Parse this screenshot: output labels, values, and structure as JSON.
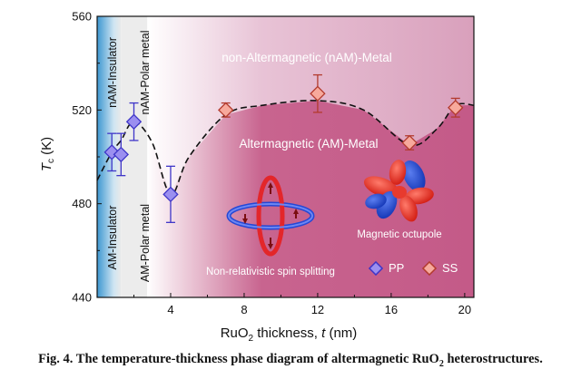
{
  "chart_data": {
    "type": "scatter",
    "xlabel": {
      "text": "RuO",
      "sub": "2",
      "rest": " thickness, ",
      "var": "t",
      "unit": " (nm)"
    },
    "ylabel": {
      "var": "T",
      "sub": "c",
      "unit": " (K)"
    },
    "xlim": [
      0,
      20.5
    ],
    "ylim": [
      440,
      560
    ],
    "xticks": [
      4,
      8,
      12,
      16,
      20
    ],
    "yticks": [
      440,
      480,
      520,
      560
    ],
    "grid": false,
    "legend_position": "bottom-right",
    "series": [
      {
        "name": "PP",
        "color": "#9b8ff0",
        "edge": "#3e35c8",
        "points": [
          {
            "x": 0.8,
            "y": 502,
            "err": 8
          },
          {
            "x": 1.3,
            "y": 501,
            "err": 9
          },
          {
            "x": 2.0,
            "y": 515,
            "err": 8
          },
          {
            "x": 4.0,
            "y": 484,
            "err": 12
          }
        ]
      },
      {
        "name": "SS",
        "color": "#f7a99c",
        "edge": "#b33b2e",
        "points": [
          {
            "x": 7.0,
            "y": 520,
            "err": 3
          },
          {
            "x": 12.0,
            "y": 527,
            "err": 8
          },
          {
            "x": 17.0,
            "y": 506,
            "err": 3
          },
          {
            "x": 19.5,
            "y": 521,
            "err": 4
          }
        ]
      }
    ],
    "trend_line": {
      "x": [
        0,
        0.8,
        1.3,
        2.0,
        3.0,
        4.0,
        5.0,
        7.0,
        9.0,
        12.0,
        14.5,
        17.0,
        18.5,
        19.5,
        20.5
      ],
      "y": [
        490,
        502,
        507,
        515,
        506,
        484,
        500,
        518,
        522,
        524,
        520,
        505,
        512,
        522,
        522
      ]
    },
    "regions": [
      {
        "x0": 0,
        "x1": 1.3,
        "label_upper": "nAM-Insulator",
        "label_lower": "AM-Insulator"
      },
      {
        "x0": 1.3,
        "x1": 4.7,
        "label_upper": "nAM-Polar metal",
        "label_lower": "AM-Polar metal"
      },
      {
        "x0": 4.7,
        "x1": 20.5,
        "label_upper": "non-Altermagnetic (nAM)-Metal",
        "label_lower": "Altermagnetic (AM)-Metal"
      }
    ],
    "annotations": {
      "spin_splitting": "Non-relativistic spin splitting",
      "octupole": "Magnetic octupole"
    },
    "colors": {
      "insulator": "#5aa9d8",
      "metal_upper": "#d9a0bc",
      "metal_lower": "#c8648f",
      "trend": "#111111"
    }
  },
  "caption": {
    "prefix": "Fig. 4. The temperature-thickness phase diagram of altermagnetic RuO",
    "sub": "2",
    "suffix": " heterostructures."
  }
}
